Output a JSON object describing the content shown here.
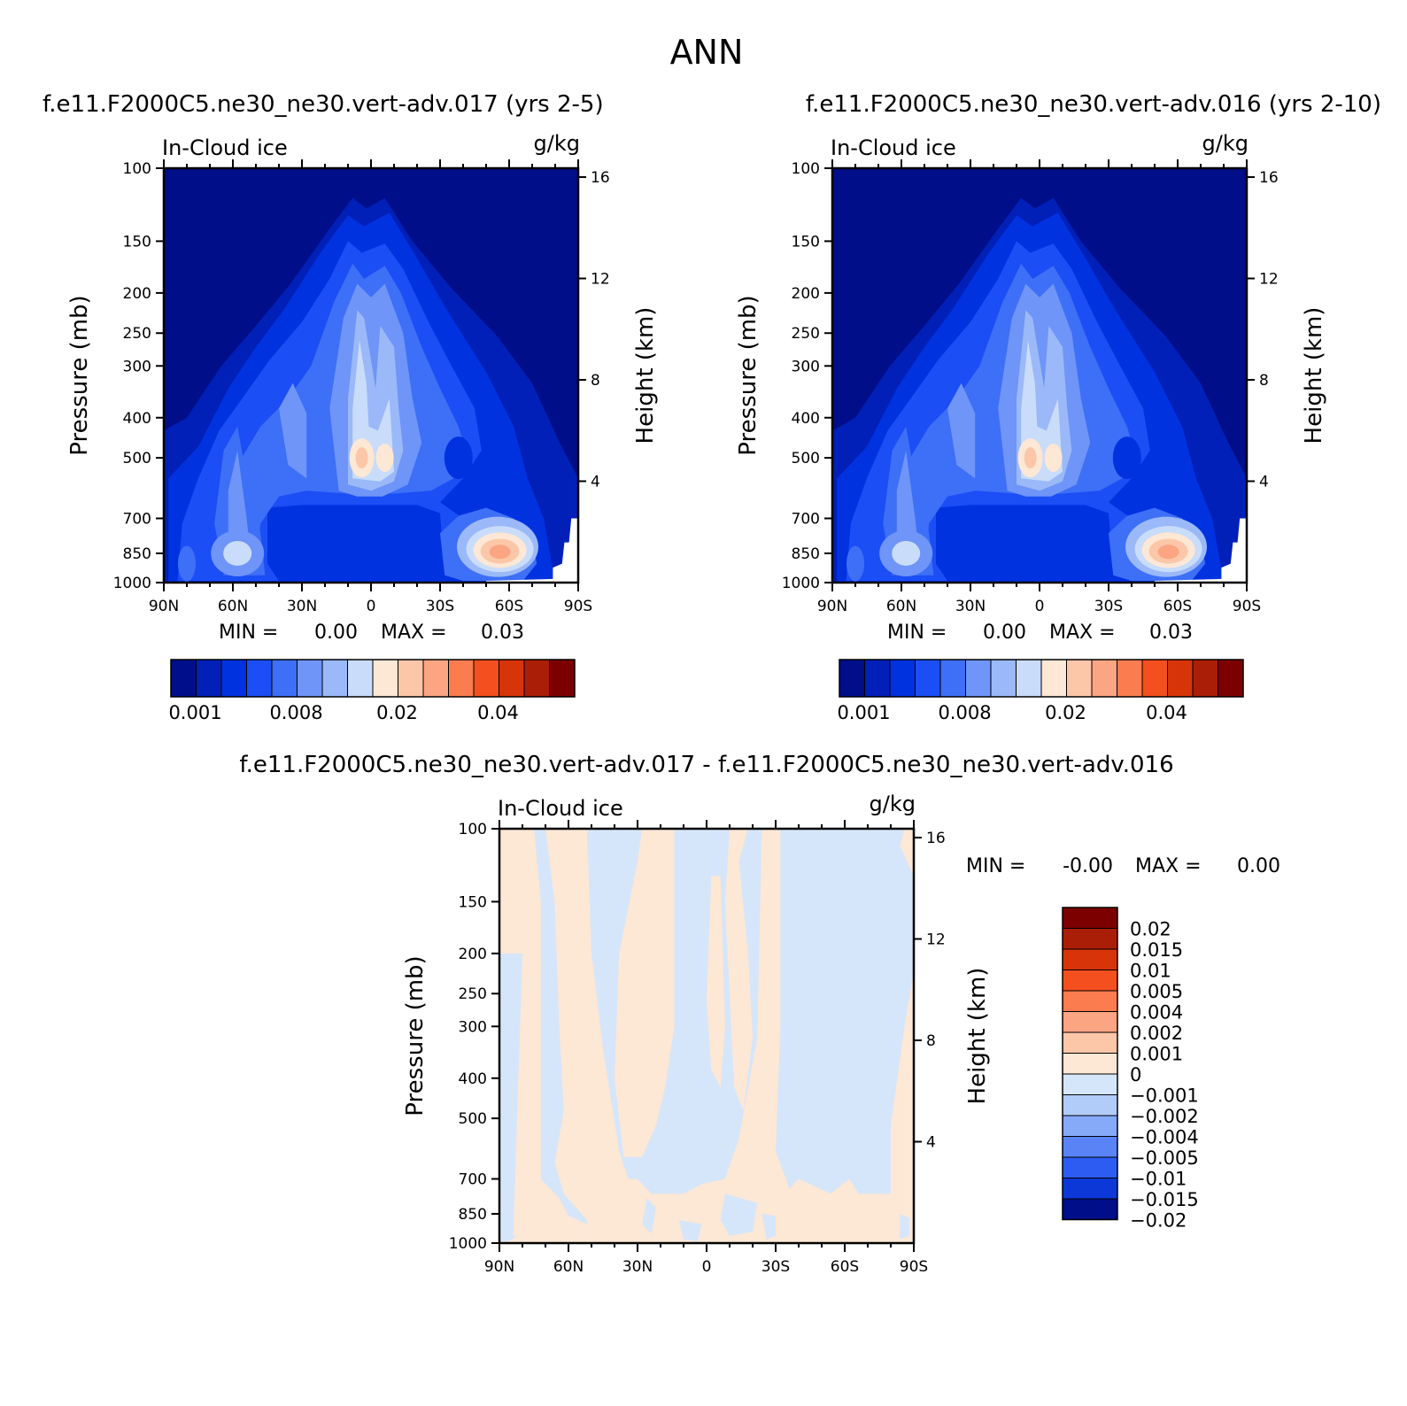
{
  "figure": {
    "title": "ANN"
  },
  "chart_data": [
    {
      "type": "heatmap",
      "title": "f.e11.F2000C5.ne30_ne30.vert-adv.017 (yrs 2-5)",
      "left_label": "In-Cloud ice",
      "right_label": "g/kg",
      "xlabel": "",
      "ylabel": "Pressure (mb)",
      "y2label": "Height (km)",
      "x_ticks": [
        "90N",
        "60N",
        "30N",
        "0",
        "30S",
        "60S",
        "90S"
      ],
      "y_ticks": [
        "100",
        "150",
        "200",
        "250",
        "300",
        "400",
        "500",
        "700",
        "850",
        "1000"
      ],
      "y_tick_values": [
        100,
        150,
        200,
        250,
        300,
        400,
        500,
        700,
        850,
        1000
      ],
      "y2_ticks": [
        "16",
        "12",
        "8",
        "4"
      ],
      "y2_tick_values": [
        16,
        12,
        8,
        4
      ],
      "ylim": [
        1000,
        100
      ],
      "y_scale": "log",
      "min_label": "MIN =",
      "min_value": "0.00",
      "max_label": "MAX =",
      "max_value": "0.03",
      "colorbar": {
        "orientation": "horizontal",
        "labels": [
          "0.001",
          "0.008",
          "0.02",
          "0.04"
        ]
      },
      "features": [
        {
          "lat": 5,
          "p": 500,
          "value": 0.02
        },
        {
          "lat": -5,
          "p": 500,
          "value": 0.02
        },
        {
          "lat": -55,
          "p": 840,
          "value": 0.03
        },
        {
          "lat": 58,
          "p": 840,
          "value": 0.008
        }
      ]
    },
    {
      "type": "heatmap",
      "title": "f.e11.F2000C5.ne30_ne30.vert-adv.016 (yrs 2-10)",
      "left_label": "In-Cloud ice",
      "right_label": "g/kg",
      "xlabel": "",
      "ylabel": "Pressure (mb)",
      "y2label": "Height (km)",
      "x_ticks": [
        "90N",
        "60N",
        "30N",
        "0",
        "30S",
        "60S",
        "90S"
      ],
      "y_ticks": [
        "100",
        "150",
        "200",
        "250",
        "300",
        "400",
        "500",
        "700",
        "850",
        "1000"
      ],
      "y_tick_values": [
        100,
        150,
        200,
        250,
        300,
        400,
        500,
        700,
        850,
        1000
      ],
      "y2_ticks": [
        "16",
        "12",
        "8",
        "4"
      ],
      "y2_tick_values": [
        16,
        12,
        8,
        4
      ],
      "ylim": [
        1000,
        100
      ],
      "y_scale": "log",
      "min_label": "MIN =",
      "min_value": "0.00",
      "max_label": "MAX =",
      "max_value": "0.03",
      "colorbar": {
        "orientation": "horizontal",
        "labels": [
          "0.001",
          "0.008",
          "0.02",
          "0.04"
        ]
      },
      "features": [
        {
          "lat": 5,
          "p": 500,
          "value": 0.02
        },
        {
          "lat": -5,
          "p": 500,
          "value": 0.02
        },
        {
          "lat": -55,
          "p": 840,
          "value": 0.03
        },
        {
          "lat": 58,
          "p": 840,
          "value": 0.008
        }
      ]
    },
    {
      "type": "heatmap",
      "title": "f.e11.F2000C5.ne30_ne30.vert-adv.017 - f.e11.F2000C5.ne30_ne30.vert-adv.016",
      "left_label": "In-Cloud ice",
      "right_label": "g/kg",
      "xlabel": "",
      "ylabel": "Pressure (mb)",
      "y2label": "Height (km)",
      "x_ticks": [
        "90N",
        "60N",
        "30N",
        "0",
        "30S",
        "60S",
        "90S"
      ],
      "y_ticks": [
        "100",
        "150",
        "200",
        "250",
        "300",
        "400",
        "500",
        "700",
        "850",
        "1000"
      ],
      "y_tick_values": [
        100,
        150,
        200,
        250,
        300,
        400,
        500,
        700,
        850,
        1000
      ],
      "y2_ticks": [
        "16",
        "12",
        "8",
        "4"
      ],
      "y2_tick_values": [
        16,
        12,
        8,
        4
      ],
      "ylim": [
        1000,
        100
      ],
      "y_scale": "log",
      "min_label": "MIN =",
      "min_value": "-0.00",
      "max_label": "MAX =",
      "max_value": "0.00",
      "colorbar": {
        "orientation": "vertical",
        "labels": [
          "0.02",
          "0.015",
          "0.01",
          "0.005",
          "0.004",
          "0.002",
          "0.001",
          "0",
          "-0.001",
          "-0.002",
          "-0.004",
          "-0.005",
          "-0.01",
          "-0.015",
          "-0.02"
        ]
      }
    }
  ],
  "colors": {
    "seq": [
      "#000e8a",
      "#0020b8",
      "#0032e0",
      "#1b4ef5",
      "#3e6ff7",
      "#6e95f7",
      "#9bb9f8",
      "#c9dcfa",
      "#fde7d5",
      "#fcc7a9",
      "#fba583",
      "#fb7c4f",
      "#f44f1e",
      "#d8340a",
      "#aa1e07",
      "#7d0000"
    ],
    "div": [
      "#7d0000",
      "#aa1e07",
      "#d8340a",
      "#f44f1e",
      "#fb7c4f",
      "#fba583",
      "#fcc7a9",
      "#fde7d5",
      "#d6e6fa",
      "#b1ccf9",
      "#86a9f8",
      "#5a84f5",
      "#2c5cf1",
      "#0b38d6",
      "#000e8a"
    ]
  }
}
